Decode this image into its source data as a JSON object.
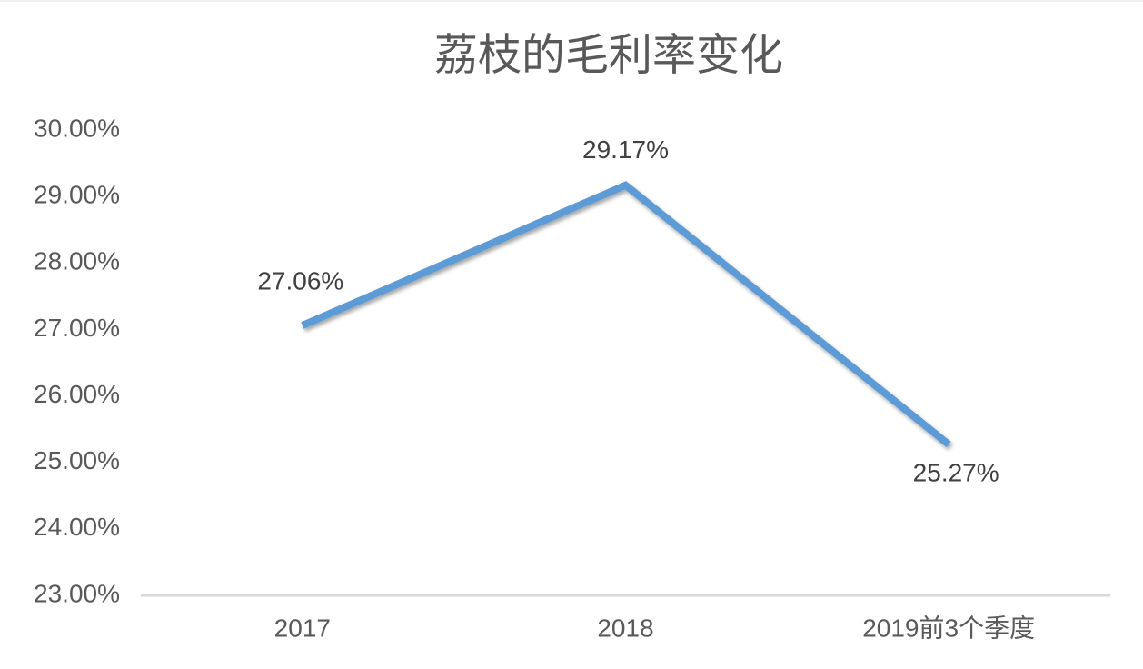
{
  "chart_data": {
    "type": "line",
    "title": "荔枝的毛利率变化",
    "categories": [
      "2017",
      "2018",
      "2019前3个季度"
    ],
    "values": [
      27.06,
      29.17,
      25.27
    ],
    "value_labels": [
      "27.06%",
      "29.17%",
      "25.27%"
    ],
    "color": "#5b9bd5",
    "ylim": [
      23,
      30
    ],
    "yticks": [
      {
        "value": 23,
        "label": "23.00%"
      },
      {
        "value": 24,
        "label": "24.00%"
      },
      {
        "value": 25,
        "label": "25.00%"
      },
      {
        "value": 26,
        "label": "26.00%"
      },
      {
        "value": 27,
        "label": "27.00%"
      },
      {
        "value": 28,
        "label": "28.00%"
      },
      {
        "value": 29,
        "label": "29.00%"
      },
      {
        "value": 30,
        "label": "30.00%"
      }
    ],
    "grid": false
  }
}
